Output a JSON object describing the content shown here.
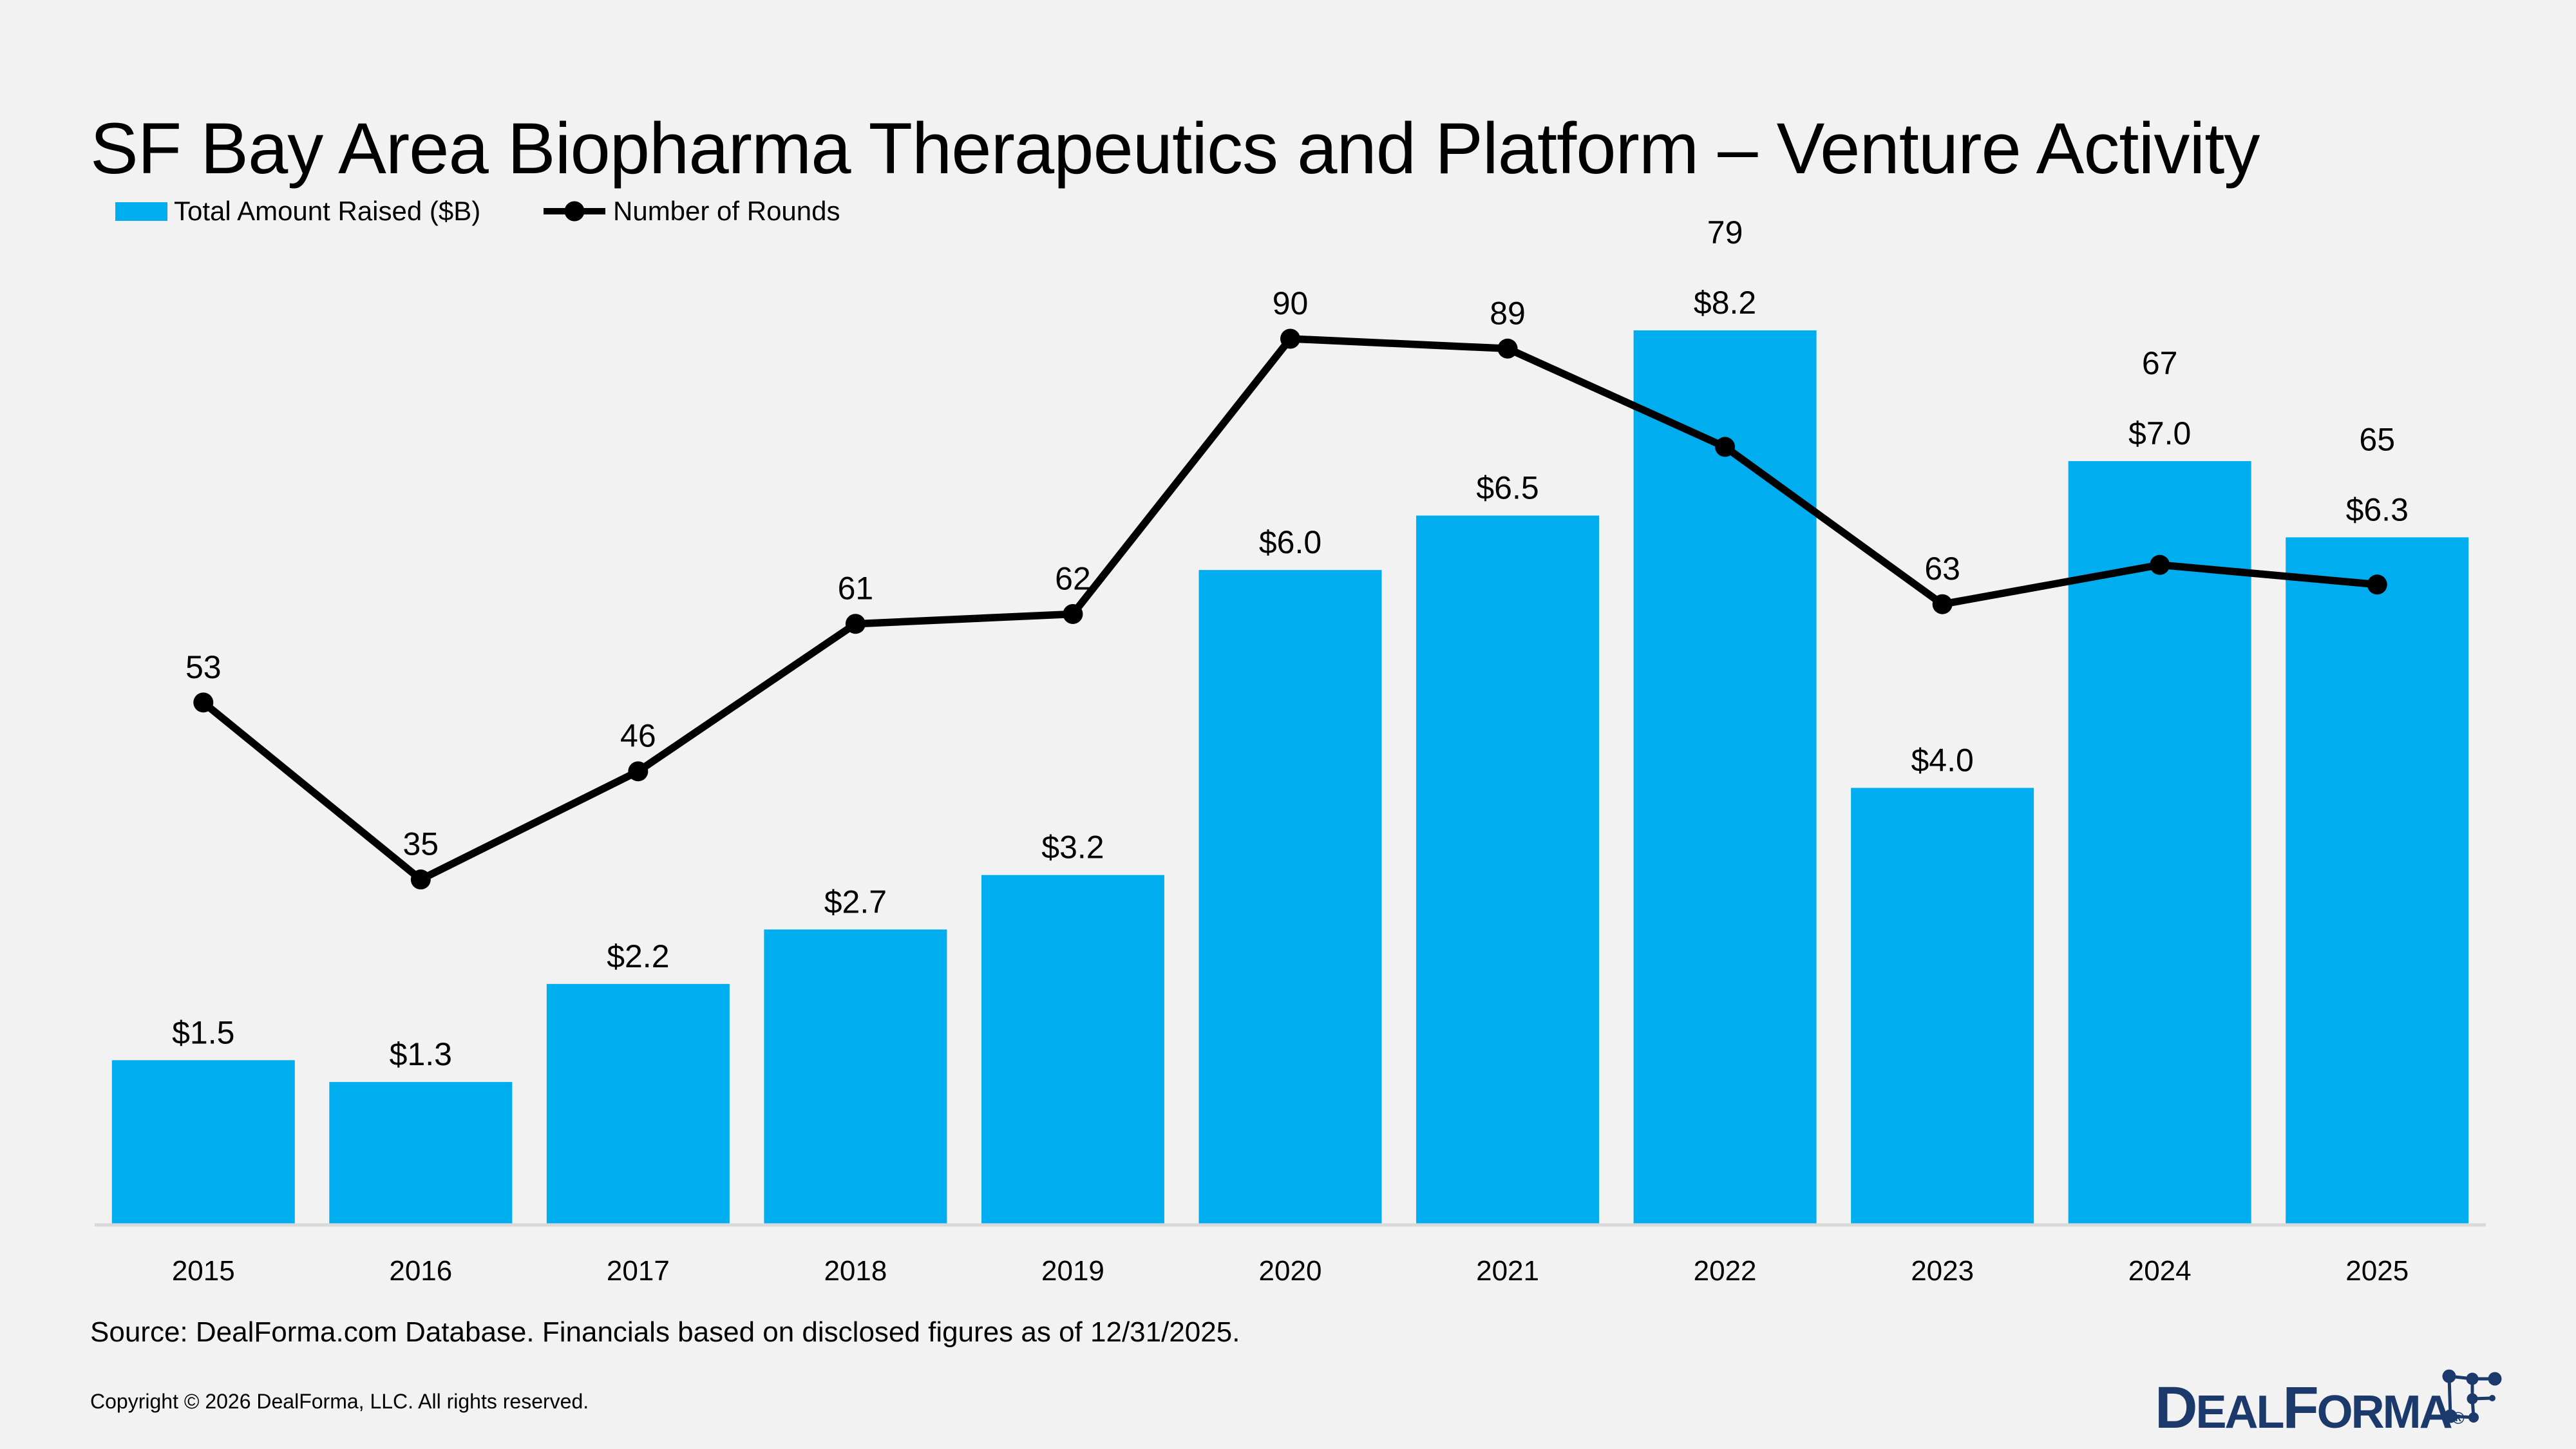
{
  "title": "SF Bay Area Biopharma Therapeutics and Platform – Venture Activity",
  "legend": {
    "bar_label": "Total Amount Raised ($B)",
    "line_label": "Number of Rounds"
  },
  "footer": {
    "source": "Source: DealForma.com Database. Financials based on disclosed figures as of 12/31/2025.",
    "copyright": "Copyright © 2026 DealForma, LLC. All rights reserved."
  },
  "logo": {
    "word_d": "D",
    "word_eal": "EAL",
    "word_f": "F",
    "word_orma": "ORMA",
    "registered": "®"
  },
  "colors": {
    "background": "#F2F2F2",
    "bar": "#00AEEF",
    "line": "#000000",
    "axis": "#D9D9D9",
    "text": "#000000",
    "logo_navy": "#1B3A6B"
  },
  "chart_data": {
    "type": "bar+line combo",
    "title": "SF Bay Area Biopharma Therapeutics and Platform – Venture Activity",
    "categories": [
      "2015",
      "2016",
      "2017",
      "2018",
      "2019",
      "2020",
      "2021",
      "2022",
      "2023",
      "2024",
      "2025"
    ],
    "series": [
      {
        "name": "Total Amount Raised ($B)",
        "type": "bar",
        "values": [
          1.5,
          1.3,
          2.2,
          2.7,
          3.2,
          6.0,
          6.5,
          8.2,
          4.0,
          7.0,
          6.3
        ],
        "labels": [
          "$1.5",
          "$1.3",
          "$2.2",
          "$2.7",
          "$3.2",
          "$6.0",
          "$6.5",
          "$8.2",
          "$4.0",
          "$7.0",
          "$6.3"
        ]
      },
      {
        "name": "Number of Rounds",
        "type": "line",
        "values": [
          53,
          35,
          46,
          61,
          62,
          90,
          89,
          79,
          63,
          67,
          65
        ],
        "labels": [
          "53",
          "35",
          "46",
          "61",
          "62",
          "90",
          "89",
          "79",
          "63",
          "67",
          "65"
        ]
      }
    ],
    "bar_axis_range": [
      0,
      8.2
    ],
    "line_axis_range": [
      0,
      90
    ],
    "value_axes_hidden": true,
    "gridlines": false,
    "data_labels": "above",
    "legend_position": "top-left"
  }
}
